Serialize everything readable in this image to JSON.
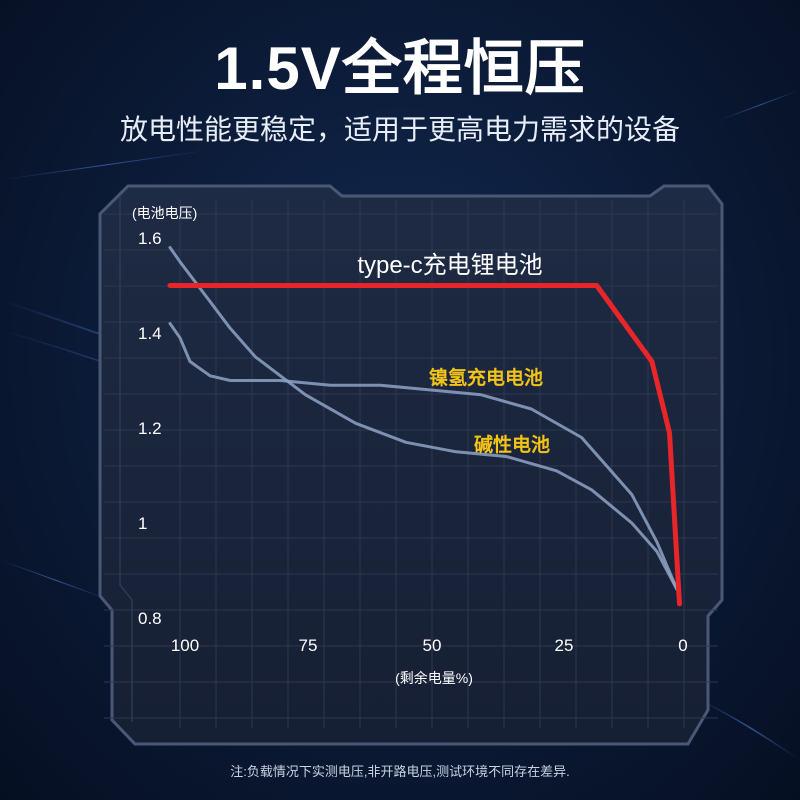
{
  "page": {
    "headline": "1.5V全程恒压",
    "subhead": "放电性能更稳定，适用于更高电力需求的设备",
    "footnote": "注:负载情况下实测电压,非开路电压,测试环境不同存在差异."
  },
  "colors": {
    "background": "#0b1a36",
    "liion_line": "#e8262a",
    "other_lines": "#8fa3c6",
    "highlight_label": "#f3c316",
    "frame": "#4a5876"
  },
  "chart_data": {
    "type": "line",
    "title": "",
    "xlabel": "(剩余电量%)",
    "ylabel": "(电池电压)",
    "xlim": [
      100,
      0
    ],
    "ylim": [
      0.8,
      1.6
    ],
    "x_ticks": [
      "100",
      "75",
      "50",
      "25",
      "0"
    ],
    "y_ticks": [
      "1.6",
      "1.4",
      "1.2",
      "1",
      "0.8"
    ],
    "grid": true,
    "series": [
      {
        "name": "type-c充电锂电池",
        "color": "#e8262a",
        "points": [
          [
            102,
            1.5
          ],
          [
            84,
            1.5
          ],
          [
            65,
            1.5
          ],
          [
            45,
            1.5
          ],
          [
            25,
            1.5
          ],
          [
            17,
            1.5
          ],
          [
            6,
            1.34
          ],
          [
            2.5,
            1.19
          ],
          [
            0.5,
            0.83
          ]
        ]
      },
      {
        "name": "镍氢充电电池",
        "color": "#8fa3c6",
        "points": [
          [
            102,
            1.42
          ],
          [
            100,
            1.39
          ],
          [
            98,
            1.34
          ],
          [
            94,
            1.31
          ],
          [
            90,
            1.3
          ],
          [
            80,
            1.3
          ],
          [
            70,
            1.29
          ],
          [
            60,
            1.29
          ],
          [
            50,
            1.28
          ],
          [
            40,
            1.27
          ],
          [
            30,
            1.24
          ],
          [
            20,
            1.18
          ],
          [
            10,
            1.06
          ],
          [
            5,
            0.96
          ],
          [
            1,
            0.86
          ]
        ]
      },
      {
        "name": "碱性电池",
        "color": "#8fa3c6",
        "points": [
          [
            102,
            1.58
          ],
          [
            100,
            1.55
          ],
          [
            95,
            1.48
          ],
          [
            90,
            1.41
          ],
          [
            85,
            1.35
          ],
          [
            80,
            1.31
          ],
          [
            75,
            1.27
          ],
          [
            65,
            1.21
          ],
          [
            55,
            1.17
          ],
          [
            45,
            1.15
          ],
          [
            35,
            1.14
          ],
          [
            25,
            1.11
          ],
          [
            18,
            1.07
          ],
          [
            10,
            1.0
          ],
          [
            5,
            0.94
          ],
          [
            1,
            0.86
          ]
        ]
      }
    ]
  }
}
